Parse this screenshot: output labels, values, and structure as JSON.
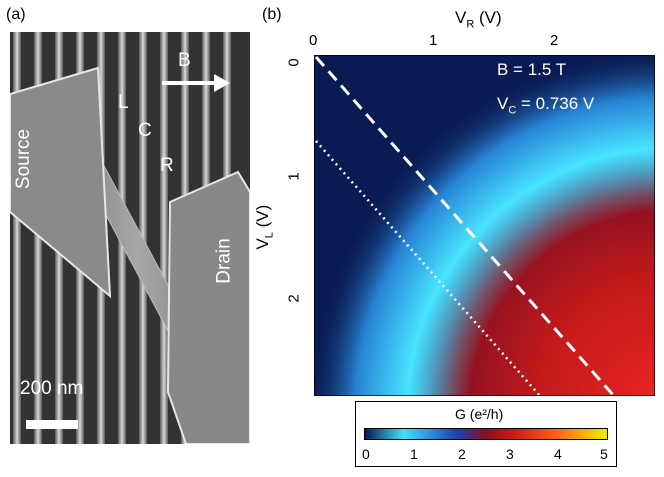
{
  "panel_a": {
    "label": "(a)",
    "annotations": {
      "source": "Source",
      "drain": "Drain",
      "field": "B",
      "left_gate": "L",
      "center_gate": "C",
      "right_gate": "R",
      "scale_bar": "200 nm"
    }
  },
  "panel_b": {
    "label": "(b)",
    "annotations": {
      "field": "B = 1.5 T",
      "vc_prefix": "V",
      "vc_sub": "C",
      "vc_suffix": " = 0.736 V"
    },
    "axes": {
      "x_title": {
        "main": "V",
        "sub": "R",
        "unit": " (V)"
      },
      "y_title": {
        "main": "V",
        "sub": "L",
        "unit": " (V)"
      },
      "x_ticks": [
        "0",
        "1",
        "2"
      ],
      "y_ticks": [
        "0",
        "1",
        "2"
      ]
    },
    "colorbar": {
      "title": "G (e²/h)",
      "ticks": [
        "0",
        "1",
        "2",
        "3",
        "4",
        "5"
      ],
      "colors": [
        "#0a1a52",
        "#40e0ff",
        "#1a3fb0",
        "#c41818",
        "#ff5a1a",
        "#f0f000"
      ]
    }
  },
  "chart_data": {
    "type": "heatmap",
    "x_axis": {
      "label": "V_R (V)",
      "range": [
        0,
        2.8
      ]
    },
    "y_axis": {
      "label": "V_L (V)",
      "range": [
        0,
        2.8
      ],
      "inverted": true
    },
    "colorbar": {
      "label": "G (e²/h)",
      "range": [
        0,
        5
      ]
    },
    "lines": [
      {
        "style": "dashed",
        "points": [
          [
            0,
            0
          ],
          [
            2.6,
            2.8
          ]
        ]
      },
      {
        "style": "dotted",
        "points": [
          [
            0,
            0.7
          ],
          [
            1.95,
            2.8
          ]
        ]
      }
    ]
  }
}
